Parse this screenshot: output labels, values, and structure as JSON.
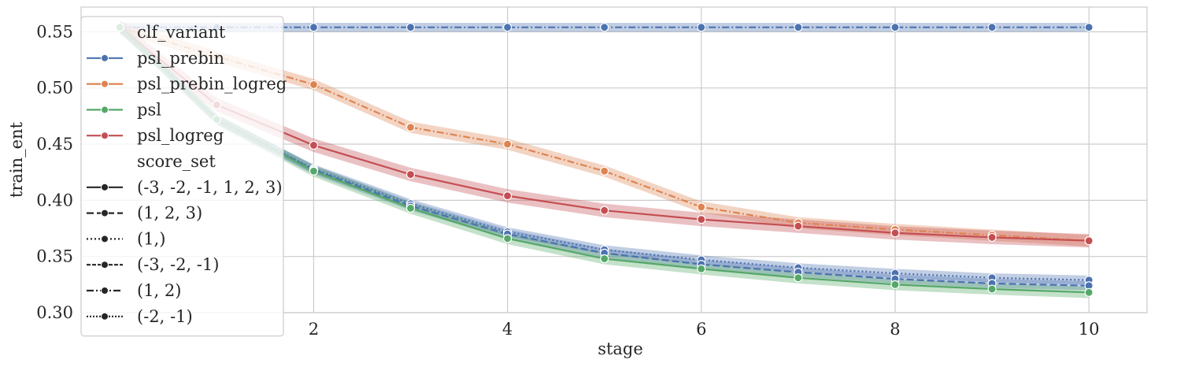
{
  "chart_data": {
    "type": "line",
    "xlabel": "stage",
    "ylabel": "train_ent",
    "xlim": [
      -0.4,
      10.6
    ],
    "ylim": [
      0.3,
      0.572
    ],
    "xticks": [
      {
        "value": 2,
        "label": "2"
      },
      {
        "value": 4,
        "label": "4"
      },
      {
        "value": 6,
        "label": "6"
      },
      {
        "value": 8,
        "label": "8"
      },
      {
        "value": 10,
        "label": "10"
      }
    ],
    "yticks": [
      {
        "value": 0.3,
        "label": "0.30"
      },
      {
        "value": 0.35,
        "label": "0.35"
      },
      {
        "value": 0.4,
        "label": "0.40"
      },
      {
        "value": 0.45,
        "label": "0.45"
      },
      {
        "value": 0.5,
        "label": "0.50"
      },
      {
        "value": 0.55,
        "label": "0.55"
      }
    ],
    "grid": true,
    "legend_position": "top-left",
    "x": [
      0,
      1,
      2,
      3,
      4,
      5,
      6,
      7,
      8,
      9,
      10
    ],
    "series": [
      {
        "name": "psl_prebin",
        "score_set": "(1, 2)",
        "color": "#4c72b0",
        "dash": "dashdot",
        "band": 0.004,
        "values": [
          0.554,
          0.554,
          0.554,
          0.554,
          0.554,
          0.554,
          0.554,
          0.554,
          0.554,
          0.554,
          0.554
        ]
      },
      {
        "name": "psl_prebin_logreg",
        "score_set": "(1, 2)",
        "color": "#dd8452",
        "dash": "dashdot",
        "band": 0.005,
        "values": [
          0.554,
          0.528,
          0.503,
          0.465,
          0.45,
          0.426,
          0.394,
          0.38,
          0.374,
          0.369,
          0.364
        ]
      },
      {
        "name": "psl_logreg",
        "score_set": "(-3, -2, -1, 1, 2, 3)",
        "color": "#c44e52",
        "dash": "solid",
        "band": 0.006,
        "values": [
          0.554,
          0.485,
          0.449,
          0.423,
          0.404,
          0.391,
          0.383,
          0.377,
          0.371,
          0.367,
          0.364
        ]
      },
      {
        "name": "psl_prebin",
        "score_set": "(1,)",
        "color": "#4c72b0",
        "dash": "dotted",
        "band": 0.004,
        "values": [
          0.554,
          0.472,
          0.428,
          0.397,
          0.372,
          0.356,
          0.347,
          0.34,
          0.335,
          0.331,
          0.329
        ]
      },
      {
        "name": "psl_prebin",
        "score_set": "(1, 2, 3)",
        "color": "#4c72b0",
        "dash": "dashed",
        "band": 0.004,
        "values": [
          0.554,
          0.472,
          0.427,
          0.395,
          0.37,
          0.353,
          0.343,
          0.336,
          0.33,
          0.326,
          0.324
        ]
      },
      {
        "name": "psl",
        "score_set": "(-3, -2, -1, 1, 2, 3)",
        "color": "#55a868",
        "dash": "solid",
        "band": 0.005,
        "values": [
          0.554,
          0.472,
          0.426,
          0.393,
          0.366,
          0.348,
          0.339,
          0.331,
          0.325,
          0.321,
          0.318
        ]
      }
    ],
    "legend": [
      {
        "kind": "title",
        "label": "clf_variant"
      },
      {
        "kind": "entry",
        "label": "psl_prebin",
        "color": "#4c72b0",
        "dash": "solid"
      },
      {
        "kind": "entry",
        "label": "psl_prebin_logreg",
        "color": "#dd8452",
        "dash": "solid"
      },
      {
        "kind": "entry",
        "label": "psl",
        "color": "#55a868",
        "dash": "solid"
      },
      {
        "kind": "entry",
        "label": "psl_logreg",
        "color": "#c44e52",
        "dash": "solid"
      },
      {
        "kind": "title",
        "label": "score_set"
      },
      {
        "kind": "entry",
        "label": "(-3, -2, -1, 1, 2, 3)",
        "color": "#262626",
        "dash": "solid"
      },
      {
        "kind": "entry",
        "label": "(1, 2, 3)",
        "color": "#262626",
        "dash": "dashed"
      },
      {
        "kind": "entry",
        "label": "(1,)",
        "color": "#262626",
        "dash": "dotted"
      },
      {
        "kind": "entry",
        "label": "(-3, -2, -1)",
        "color": "#262626",
        "dash": "densedash"
      },
      {
        "kind": "entry",
        "label": "(1, 2)",
        "color": "#262626",
        "dash": "dashdot"
      },
      {
        "kind": "entry",
        "label": "(-2, -1)",
        "color": "#262626",
        "dash": "densedot"
      }
    ]
  }
}
